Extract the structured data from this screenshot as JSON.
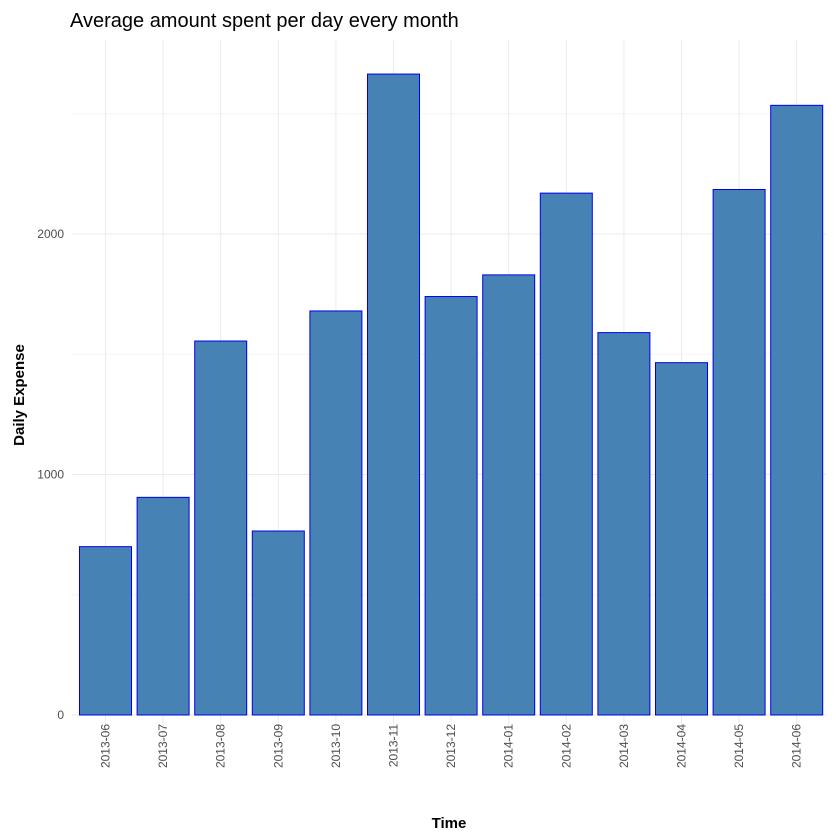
{
  "chart_data": {
    "type": "bar",
    "title": "Average amount spent per day every month",
    "xlabel": "Time",
    "ylabel": "Daily Expense",
    "categories": [
      "2013-06",
      "2013-07",
      "2013-08",
      "2013-09",
      "2013-10",
      "2013-11",
      "2013-12",
      "2014-01",
      "2014-02",
      "2014-03",
      "2014-04",
      "2014-05",
      "2014-06"
    ],
    "values": [
      700,
      905,
      1555,
      765,
      1680,
      2665,
      1740,
      1830,
      2170,
      1590,
      1465,
      2185,
      2535
    ],
    "yticks": [
      0,
      1000,
      2000
    ],
    "ylim": [
      -120,
      2800
    ],
    "grid": true,
    "legend": "none",
    "colors": {
      "bar_fill": "#4682b4",
      "bar_stroke": "#0000ee",
      "grid_major": "#ebebeb",
      "grid_minor": "#f5f5f5"
    }
  }
}
